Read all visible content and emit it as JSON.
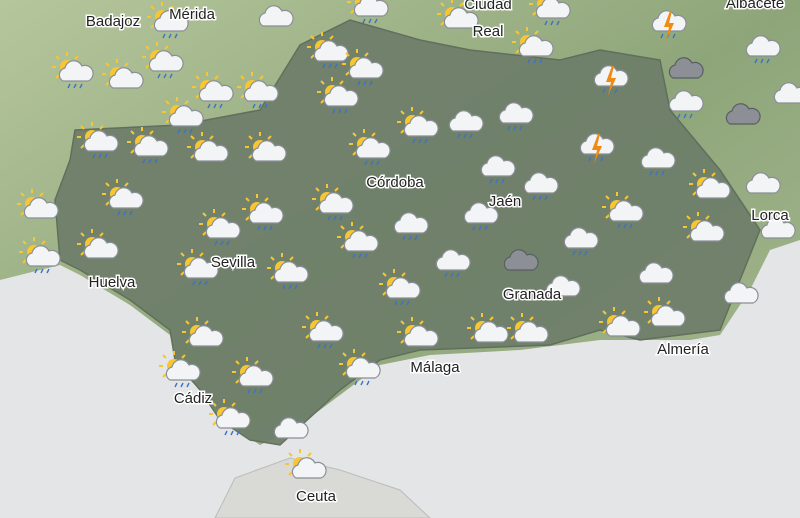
{
  "cities": [
    {
      "label": "Badajoz"
    },
    {
      "label": "Mérida"
    },
    {
      "label": "Ciudad"
    },
    {
      "label": "Real"
    },
    {
      "label": "Albacete"
    },
    {
      "label": "Córdoba"
    },
    {
      "label": "Jaén"
    },
    {
      "label": "Lorca"
    },
    {
      "label": "Sevilla"
    },
    {
      "label": "Huelva"
    },
    {
      "label": "Granada"
    },
    {
      "label": "Almería"
    },
    {
      "label": "Málaga"
    },
    {
      "label": "Cádiz"
    },
    {
      "label": "Ceuta"
    }
  ]
}
